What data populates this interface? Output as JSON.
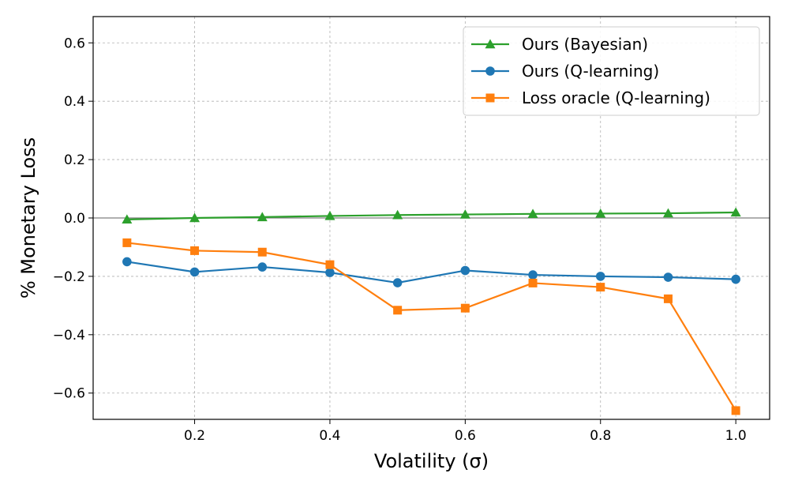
{
  "chart_data": {
    "type": "line",
    "xlabel": "Volatility (σ)",
    "ylabel": "% Monetary Loss",
    "xlim": [
      0.05,
      1.05
    ],
    "ylim": [
      -0.69,
      0.69
    ],
    "xticks": [
      0.2,
      0.4,
      0.6,
      0.8,
      1.0
    ],
    "xtick_labels": [
      "0.2",
      "0.4",
      "0.6",
      "0.8",
      "1.0"
    ],
    "yticks": [
      -0.6,
      -0.4,
      -0.2,
      0.0,
      0.2,
      0.4,
      0.6
    ],
    "ytick_labels": [
      "−0.6",
      "−0.4",
      "−0.2",
      "0.0",
      "0.2",
      "0.4",
      "0.6"
    ],
    "grid": true,
    "zero_line": true,
    "legend_position": "top-right",
    "x": [
      0.1,
      0.2,
      0.3,
      0.4,
      0.5,
      0.6,
      0.7,
      0.8,
      0.9,
      1.0
    ],
    "series": [
      {
        "name": "Ours (Bayesian)",
        "color": "#2ca02c",
        "marker": "triangle",
        "values": [
          -0.005,
          0.0,
          0.003,
          0.007,
          0.01,
          0.012,
          0.014,
          0.015,
          0.016,
          0.019
        ]
      },
      {
        "name": "Ours (Q-learning)",
        "color": "#1f77b4",
        "marker": "circle",
        "values": [
          -0.15,
          -0.185,
          -0.168,
          -0.187,
          -0.222,
          -0.18,
          -0.195,
          -0.2,
          -0.203,
          -0.21
        ]
      },
      {
        "name": "Loss oracle (Q-learning)",
        "color": "#ff7f0e",
        "marker": "square",
        "values": [
          -0.085,
          -0.112,
          -0.117,
          -0.16,
          -0.316,
          -0.309,
          -0.223,
          -0.237,
          -0.277,
          -0.66
        ]
      }
    ]
  }
}
